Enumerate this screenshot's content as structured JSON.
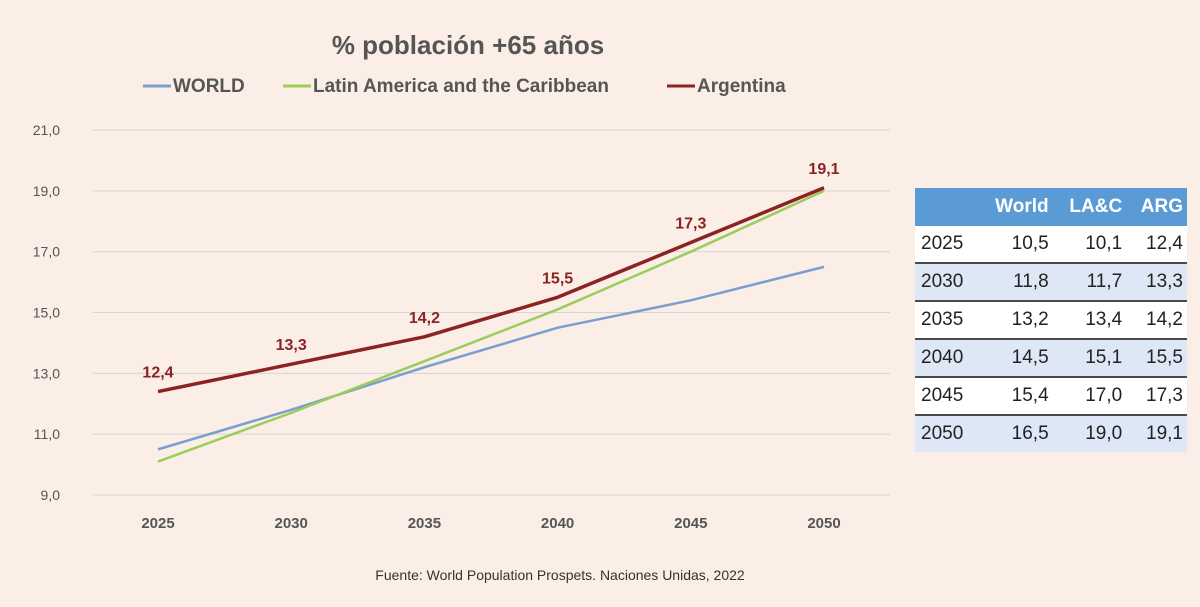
{
  "chart_data": {
    "type": "line",
    "title": "% población +65 años",
    "categories": [
      "2025",
      "2030",
      "2035",
      "2040",
      "2045",
      "2050"
    ],
    "series": [
      {
        "name": "WORLD",
        "color": "#7a9fcf",
        "values": [
          10.5,
          11.8,
          13.2,
          14.5,
          15.4,
          16.5
        ]
      },
      {
        "name": "Latin America and the Caribbean",
        "color": "#9acd5a",
        "values": [
          10.1,
          11.7,
          13.4,
          15.1,
          17.0,
          19.0
        ]
      },
      {
        "name": "Argentina",
        "color": "#8b2323",
        "values": [
          12.4,
          13.3,
          14.2,
          15.5,
          17.3,
          19.1
        ]
      }
    ],
    "data_labels": [
      "12,4",
      "13,3",
      "14,2",
      "15,5",
      "17,3",
      "19,1"
    ],
    "y_ticks": [
      "9,0",
      "11,0",
      "13,0",
      "15,0",
      "17,0",
      "19,0",
      "21,0"
    ],
    "ylim": [
      9,
      21
    ],
    "xlabel": "",
    "ylabel": "",
    "grid": true,
    "legend_position": "top"
  },
  "table": {
    "headers": [
      "",
      "World",
      "LA&C",
      "ARG"
    ],
    "rows": [
      [
        "2025",
        "10,5",
        "10,1",
        "12,4"
      ],
      [
        "2030",
        "11,8",
        "11,7",
        "13,3"
      ],
      [
        "2035",
        "13,2",
        "13,4",
        "14,2"
      ],
      [
        "2040",
        "14,5",
        "15,1",
        "15,5"
      ],
      [
        "2045",
        "15,4",
        "17,0",
        "17,3"
      ],
      [
        "2050",
        "16,5",
        "19,0",
        "19,1"
      ]
    ]
  },
  "source": "Fuente: World Population Prospets. Naciones Unidas, 2022"
}
